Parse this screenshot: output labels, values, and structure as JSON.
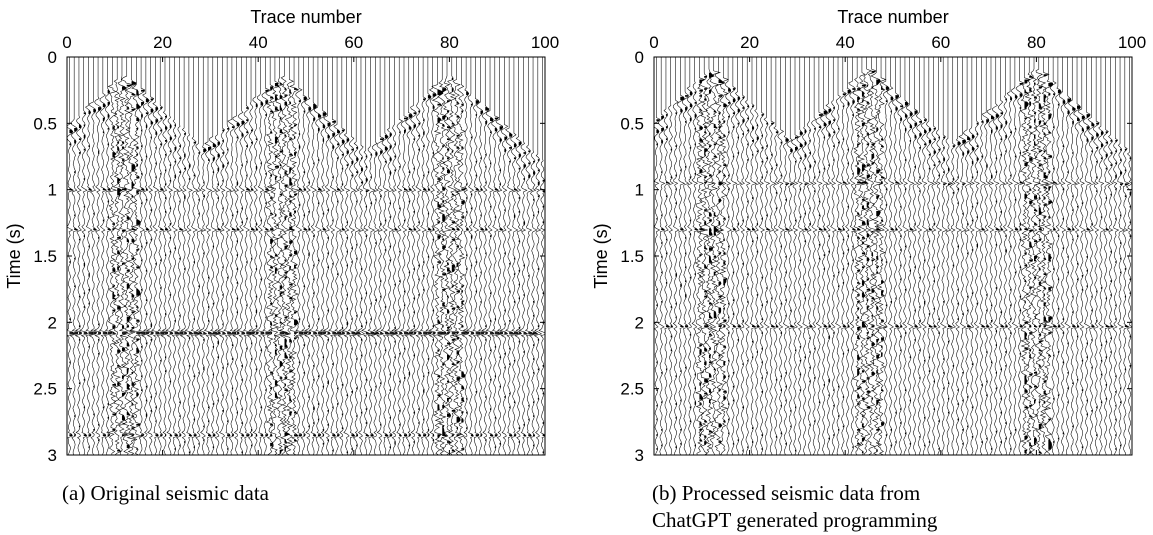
{
  "figure": {
    "caption_a": "(a) Original seismic data",
    "caption_b": "(b) Processed seismic data from ChatGPT generated programming"
  },
  "chart_data": [
    {
      "type": "seismic-wiggle",
      "panel": "a",
      "xlabel": "Trace number",
      "ylabel": "Time (s)",
      "x_axis_position": "top",
      "y_reversed": true,
      "xlim": [
        0,
        100
      ],
      "ylim": [
        0,
        3
      ],
      "xticks": [
        0,
        20,
        40,
        60,
        80,
        100
      ],
      "xtick_labels": [
        "0",
        "20",
        "40",
        "60",
        "80",
        "100"
      ],
      "yticks": [
        0,
        0.5,
        1,
        1.5,
        2,
        2.5,
        3
      ],
      "ytick_labels": [
        "0",
        "0.5",
        "1",
        "1.5",
        "2",
        "2.5",
        "3"
      ],
      "trace_count": 100,
      "shot_apex_traces": [
        12,
        45,
        80
      ],
      "first_break_apex_time_s": 0.15,
      "reflection_times_s": [
        1.0,
        1.3,
        2.08,
        2.85
      ],
      "strong_reflection_time_s": 2.08,
      "grid": false
    },
    {
      "type": "seismic-wiggle",
      "panel": "b",
      "xlabel": "Trace number",
      "ylabel": "Time (s)",
      "x_axis_position": "top",
      "y_reversed": true,
      "xlim": [
        0,
        100
      ],
      "ylim": [
        0,
        3
      ],
      "xticks": [
        0,
        20,
        40,
        60,
        80,
        100
      ],
      "xtick_labels": [
        "0",
        "20",
        "40",
        "60",
        "80",
        "100"
      ],
      "yticks": [
        0,
        0.5,
        1,
        1.5,
        2,
        2.5,
        3
      ],
      "ytick_labels": [
        "0",
        "0.5",
        "1",
        "1.5",
        "2",
        "2.5",
        "3"
      ],
      "trace_count": 100,
      "shot_apex_traces": [
        12,
        45,
        80
      ],
      "first_break_apex_time_s": 0.1,
      "reflection_times_s": [
        0.95,
        1.3,
        2.03
      ],
      "strong_reflection_time_s": 2.03,
      "grid": false
    }
  ]
}
